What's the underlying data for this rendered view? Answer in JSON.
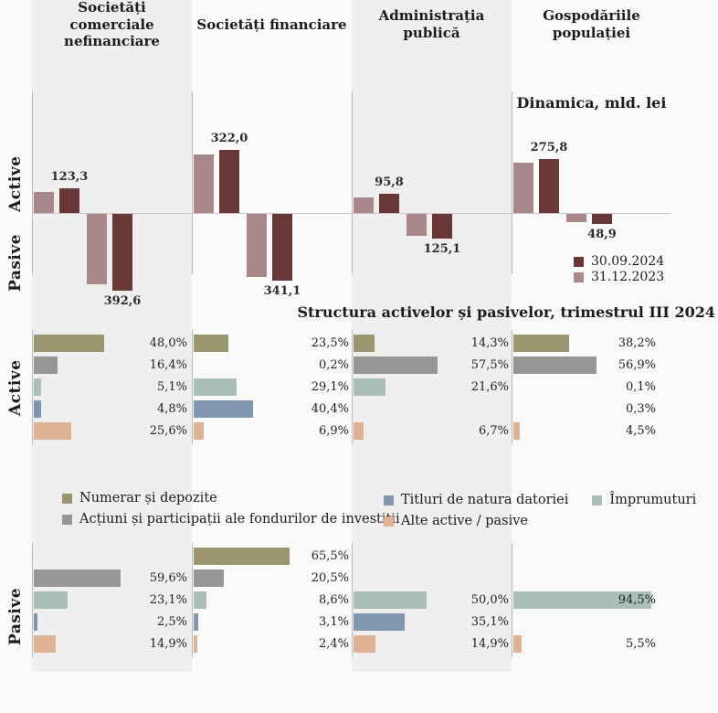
{
  "labels": {
    "active": "Active",
    "pasive": "Pasive"
  },
  "colors": {
    "background": "#fafafa",
    "panel": "#efefef",
    "axis_line": "#c9c3c3",
    "grid_line": "#b9b9b9",
    "text": "#1c1c1c"
  },
  "chart_data": [
    {
      "type": "bar",
      "title": "Dinamica, mld. lei",
      "categories": [
        "Societăți comerciale nefinanciare",
        "Societăți financiare",
        "Administrația publică",
        "Gospodăriile populației"
      ],
      "row_groups": [
        "Active",
        "Pasive"
      ],
      "pasive_orientation": "drawn downward from the zero line",
      "series": [
        {
          "name": "31.12.2023",
          "color": "#a9888c",
          "active": [
            106,
            300,
            78,
            258
          ],
          "pasive": [
            360,
            320,
            112,
            40
          ],
          "note": "unlabeled bars, values estimated from heights"
        },
        {
          "name": "30.09.2024",
          "color": "#6a3737",
          "active": [
            123.3,
            322.0,
            95.8,
            275.8
          ],
          "pasive": [
            392.6,
            341.1,
            125.1,
            48.9
          ]
        }
      ],
      "data_labels": {
        "active": [
          "123,3",
          "322,0",
          "95,8",
          "275,8"
        ],
        "pasive": [
          "392,6",
          "341,1",
          "125,1",
          "48,9"
        ]
      },
      "legend_position": "right side under last panel"
    },
    {
      "type": "bar-horizontal",
      "title": "Structura activelor și pasivelor, trimestrul III 2024",
      "unit": "%",
      "categories": [
        {
          "name": "Numerar și depozite",
          "color": "#9a966f"
        },
        {
          "name": "Acțiuni și participații ale fondurilor de investiții",
          "color": "#969696"
        },
        {
          "name": "Împrumuturi",
          "color": "#aabfba"
        },
        {
          "name": "Titluri de natura datoriei",
          "color": "#8197af"
        },
        {
          "name": "Alte active / pasive",
          "color": "#e0b294"
        }
      ],
      "active_pct": [
        [
          48.0,
          16.4,
          5.1,
          4.8,
          25.6
        ],
        [
          23.5,
          0.2,
          29.1,
          40.4,
          6.9
        ],
        [
          14.3,
          57.5,
          21.6,
          null,
          6.7
        ],
        [
          38.2,
          56.9,
          0.1,
          0.3,
          4.5
        ]
      ],
      "pasive_pct": [
        [
          null,
          59.6,
          23.1,
          2.5,
          14.9
        ],
        [
          65.5,
          20.5,
          8.6,
          3.1,
          2.4
        ],
        [
          null,
          null,
          50.0,
          35.1,
          14.9
        ],
        [
          null,
          null,
          94.5,
          null,
          5.5
        ]
      ]
    }
  ]
}
